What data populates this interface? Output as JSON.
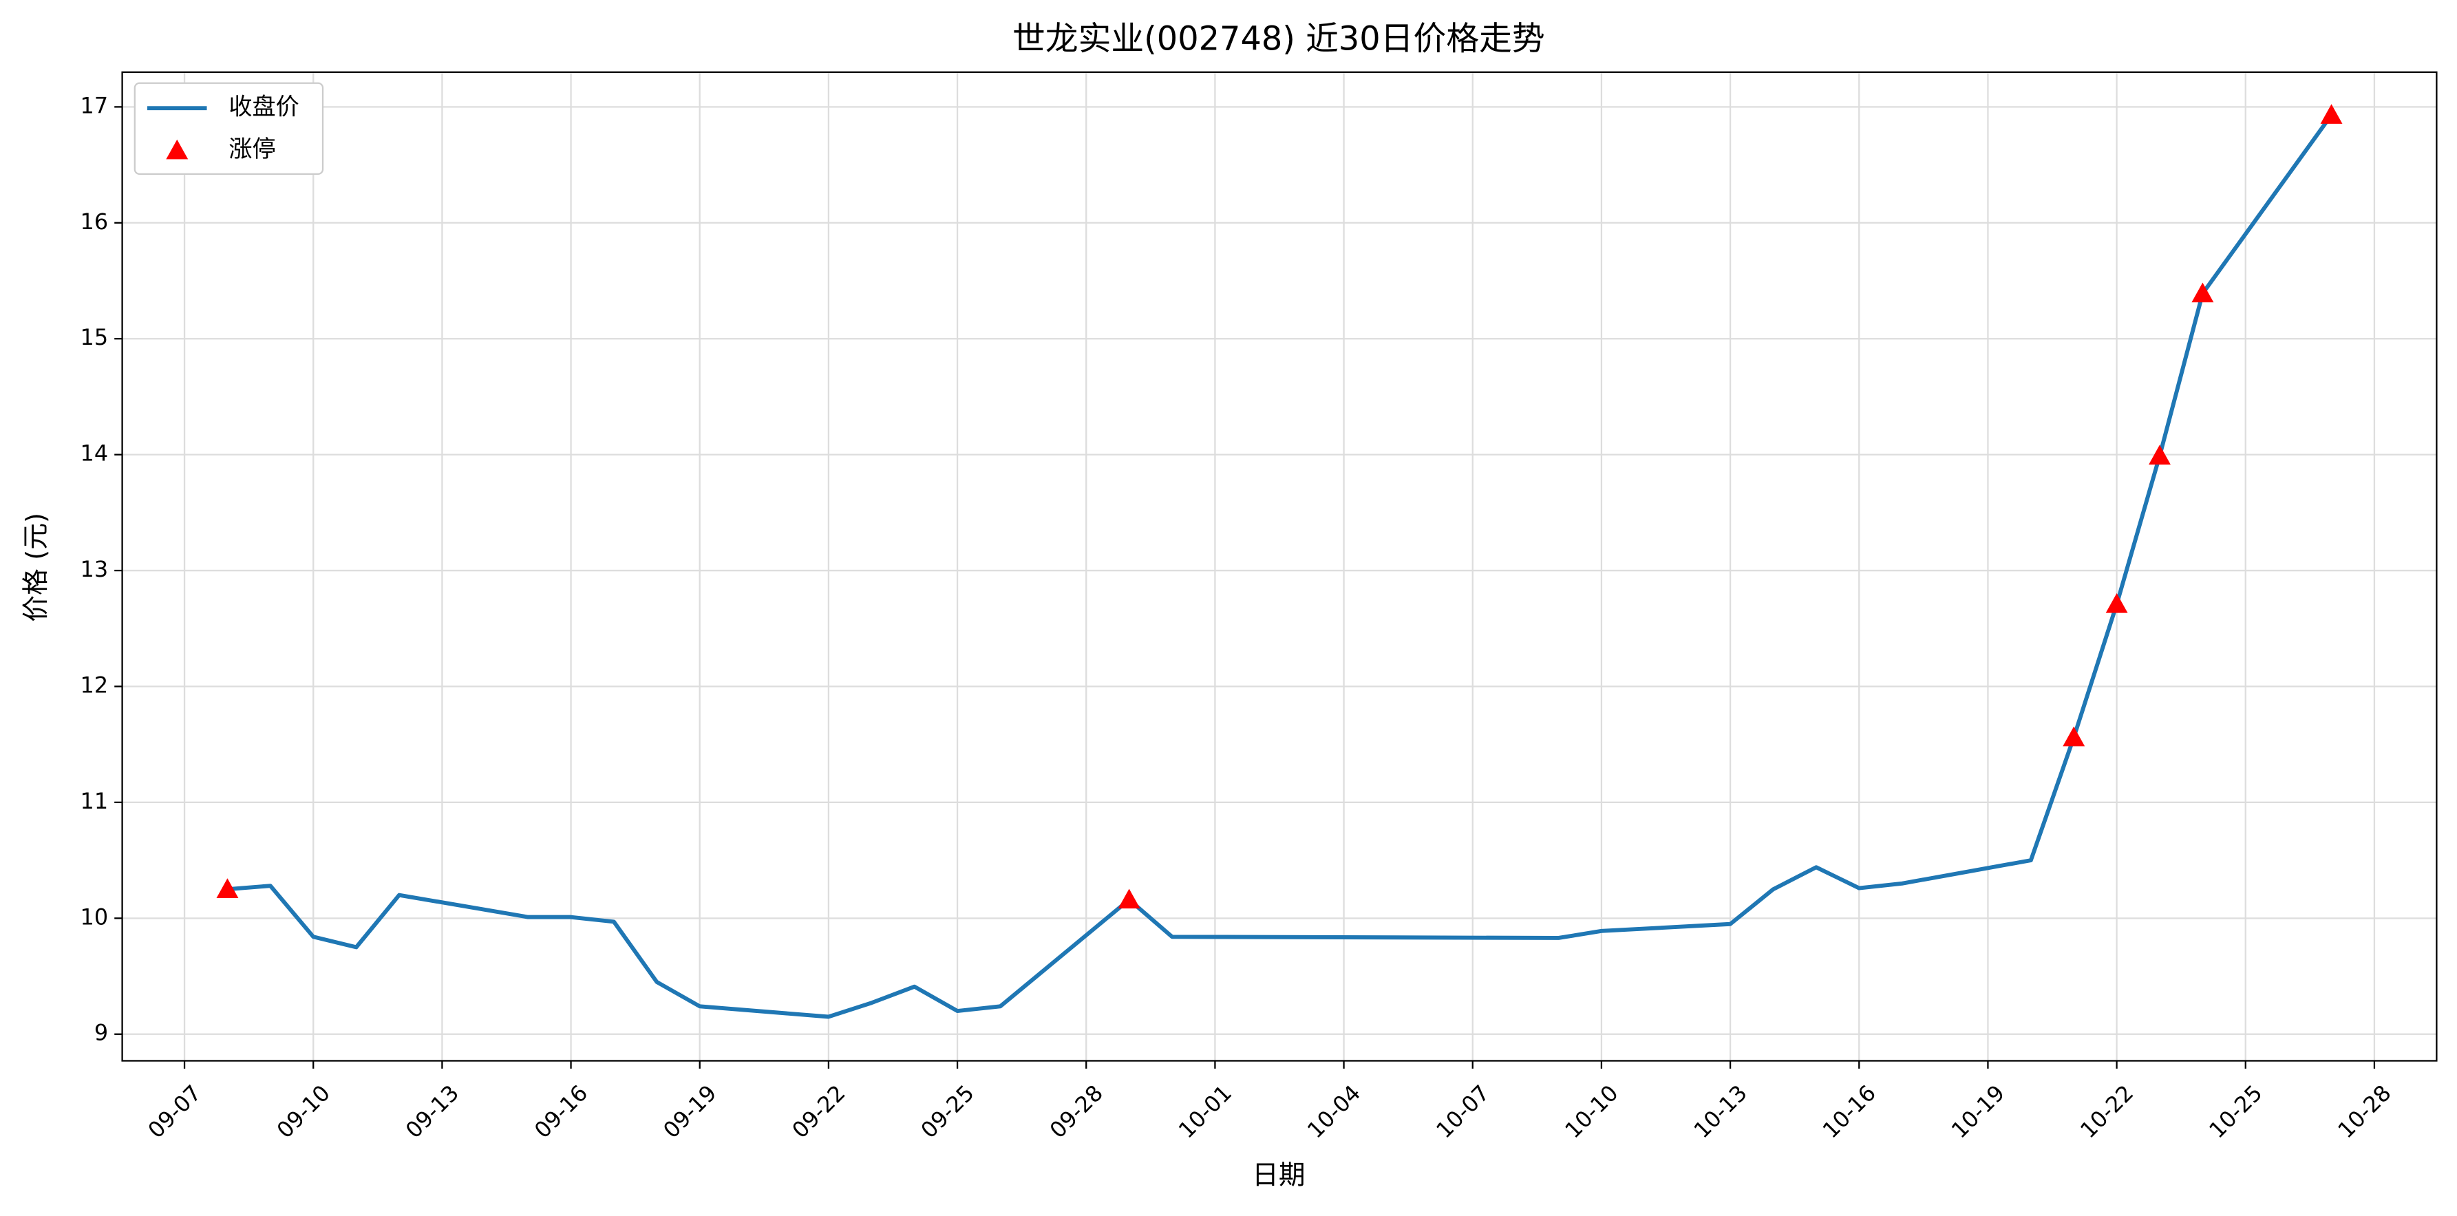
{
  "chart_data": {
    "type": "line",
    "title": "世龙实业(002748) 近30日价格走势",
    "x_label": "日期",
    "y_label": "价格 (元)",
    "x": [
      "09-08",
      "09-09",
      "09-10",
      "09-11",
      "09-12",
      "09-15",
      "09-16",
      "09-17",
      "09-18",
      "09-19",
      "09-22",
      "09-23",
      "09-24",
      "09-25",
      "09-26",
      "09-29",
      "09-30",
      "10-09",
      "10-10",
      "10-13",
      "10-14",
      "10-15",
      "10-16",
      "10-17",
      "10-20",
      "10-21",
      "10-22",
      "10-23",
      "10-24",
      "10-27"
    ],
    "series": [
      {
        "name": "收盘价",
        "type": "line",
        "color": "#1f77b4",
        "values": [
          10.25,
          10.28,
          9.84,
          9.75,
          10.2,
          10.01,
          10.01,
          9.97,
          9.45,
          9.24,
          9.15,
          9.27,
          9.41,
          9.2,
          9.24,
          10.16,
          9.84,
          9.83,
          9.89,
          9.95,
          10.25,
          10.44,
          10.26,
          10.3,
          10.5,
          11.56,
          12.71,
          13.99,
          15.39,
          16.93
        ]
      },
      {
        "name": "涨停",
        "type": "scatter",
        "marker": "triangle",
        "color": "#ff0000",
        "values": [
          10.25,
          null,
          null,
          null,
          null,
          null,
          null,
          null,
          null,
          null,
          null,
          null,
          null,
          null,
          null,
          10.16,
          null,
          null,
          null,
          null,
          null,
          null,
          null,
          null,
          null,
          11.56,
          12.71,
          13.99,
          15.39,
          16.93
        ]
      }
    ],
    "xticks": [
      "09-07",
      "09-10",
      "09-13",
      "09-16",
      "09-19",
      "09-22",
      "09-25",
      "09-28",
      "10-01",
      "10-04",
      "10-07",
      "10-10",
      "10-13",
      "10-16",
      "10-19",
      "10-22",
      "10-25",
      "10-28"
    ],
    "ylim": [
      8.77,
      17.3
    ],
    "yticks": [
      9,
      10,
      11,
      12,
      13,
      14,
      15,
      16,
      17
    ],
    "grid": true,
    "legend": "upper-left"
  }
}
